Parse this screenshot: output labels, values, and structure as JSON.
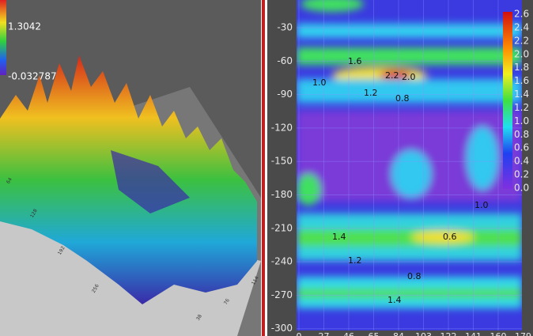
{
  "left_panel": {
    "colorbar": {
      "max": "1.3042",
      "min": "-0.032787"
    },
    "axis_labels": [
      "64",
      "128",
      "192",
      "256",
      "114",
      "76",
      "38"
    ]
  },
  "right_panel": {
    "y_ticks": [
      "-30",
      "-60",
      "-90",
      "-120",
      "-150",
      "-180",
      "-210",
      "-240",
      "-270",
      "-300"
    ],
    "x_ticks": [
      "0",
      "27",
      "46",
      "65",
      "84",
      "103",
      "122",
      "141",
      "160",
      "179"
    ],
    "colorbar_ticks": [
      "2.6",
      "2.4",
      "2.2",
      "2.0",
      "1.8",
      "1.6",
      "1.4",
      "1.2",
      "1.0",
      "0.8",
      "0.6",
      "0.4",
      "0.2",
      "0.0"
    ],
    "contour_labels": [
      "2.2",
      "2.0",
      "1.6",
      "1.0",
      "0.8",
      "1.2",
      "1.4",
      "0.6",
      "1.0",
      "0.8",
      "1.4",
      "1.2"
    ]
  }
}
